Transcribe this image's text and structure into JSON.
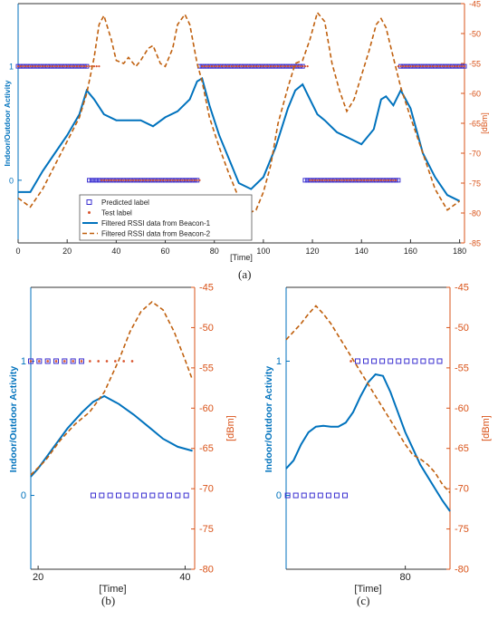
{
  "colors": {
    "left_axis": "#0072BD",
    "right_axis": "#D95319",
    "predicted": "#3a2fd0",
    "test": "#d9532c",
    "beacon1": "#0072BD",
    "beacon2": "#C0600E"
  },
  "captions": [
    "(a)",
    "(b)",
    "(c)"
  ],
  "chart_data": [
    {
      "panel": "a",
      "type": "line",
      "xlabel": "[Time]",
      "ylabel": "Indoor/Outdoor Activity",
      "ylabel_right": "[dBm]",
      "xlim": [
        0,
        182
      ],
      "ylim_left": [
        -0.55,
        1.55
      ],
      "ylim_right": [
        -85,
        -45
      ],
      "xticks": [
        "0",
        "20",
        "40",
        "60",
        "80",
        "100",
        "120",
        "140",
        "160",
        "180"
      ],
      "yticks_left": [
        "0",
        "1"
      ],
      "yticks_right": [
        "-45",
        "-50",
        "-55",
        "-60",
        "-65",
        "-70",
        "-75",
        "-80",
        "-85"
      ],
      "legend": [
        "Predicted label",
        "Test label",
        "Filtered RSSI data from Beacon-1",
        "Filtered RSSI data from Beacon-2"
      ],
      "legend_position": "bottom-left",
      "series": [
        {
          "name": "Predicted label",
          "kind": "markers",
          "marker": "square",
          "segments": [
            {
              "x": [
                0,
                27
              ],
              "y": 1
            },
            {
              "x": 28,
              "y": 1
            },
            {
              "x": [
                29,
                73
              ],
              "y": 0
            },
            {
              "x": [
                74,
                116
              ],
              "y": 1
            },
            {
              "x": [
                117,
                155
              ],
              "y": 0
            },
            {
              "x": [
                156,
                182
              ],
              "y": 1
            }
          ]
        },
        {
          "name": "Test label",
          "kind": "markers",
          "marker": "dot",
          "segments": [
            {
              "x": [
                0,
                33
              ],
              "y": 1
            },
            {
              "x": [
                34,
                74
              ],
              "y": 0
            },
            {
              "x": [
                75,
                118
              ],
              "y": 1
            },
            {
              "x": [
                119,
                154
              ],
              "y": 0
            },
            {
              "x": [
                155,
                182
              ],
              "y": 1
            }
          ]
        },
        {
          "name": "Filtered RSSI data from Beacon-1",
          "axis": "right",
          "x": [
            0,
            5,
            10,
            15,
            20,
            25,
            28,
            31,
            35,
            40,
            45,
            50,
            55,
            60,
            65,
            70,
            73,
            75,
            78,
            82,
            86,
            90,
            95,
            100,
            105,
            110,
            113,
            116,
            119,
            122,
            125,
            130,
            135,
            140,
            145,
            148,
            150,
            153,
            156,
            160,
            165,
            170,
            175,
            180
          ],
          "y": [
            -76.5,
            -76.5,
            -73,
            -70,
            -67,
            -63.5,
            -59.5,
            -61,
            -63.5,
            -64.5,
            -64.5,
            -64.5,
            -65.5,
            -64,
            -63,
            -61,
            -58,
            -57.5,
            -62,
            -67,
            -71,
            -75,
            -76,
            -74,
            -69,
            -62.5,
            -59.5,
            -58.5,
            -61,
            -63.5,
            -64.5,
            -66.5,
            -67.5,
            -68.5,
            -66,
            -61,
            -60.5,
            -62,
            -59.5,
            -62.5,
            -70,
            -74,
            -77,
            -78
          ]
        },
        {
          "name": "Filtered RSSI data from Beacon-2",
          "axis": "right",
          "x": [
            0,
            5,
            10,
            15,
            20,
            25,
            28,
            31,
            33,
            35,
            38,
            40,
            43,
            45,
            48,
            50,
            53,
            55,
            58,
            60,
            63,
            65,
            68,
            70,
            73,
            75,
            78,
            82,
            86,
            90,
            94,
            97,
            100,
            103,
            106,
            110,
            113,
            116,
            119,
            122,
            125,
            128,
            131,
            134,
            137,
            140,
            143,
            146,
            148,
            150,
            153,
            156,
            160,
            165,
            170,
            175,
            180
          ],
          "y": [
            -77.5,
            -79,
            -76,
            -72,
            -68,
            -64,
            -60,
            -54,
            -48.5,
            -47,
            -51,
            -54.5,
            -55,
            -54,
            -55.5,
            -54.5,
            -52.5,
            -52,
            -55,
            -55.5,
            -52.5,
            -48.5,
            -46.8,
            -48.5,
            -55,
            -58,
            -64,
            -69,
            -73.5,
            -77.5,
            -80,
            -79.5,
            -76.5,
            -72,
            -65,
            -59,
            -55,
            -54.5,
            -51,
            -46.5,
            -48,
            -55,
            -59.5,
            -63,
            -61,
            -57,
            -53,
            -48.5,
            -47.5,
            -49,
            -54,
            -59,
            -64,
            -70,
            -76,
            -79.5,
            -78
          ]
        }
      ]
    },
    {
      "panel": "b",
      "type": "line",
      "xlabel": "[Time]",
      "ylabel": "Indoor/Outdoor Activity",
      "ylabel_right": "[dBm]",
      "xlim": [
        19,
        41.3
      ],
      "ylim_left": [
        -0.55,
        1.55
      ],
      "ylim_right": [
        -80,
        -45
      ],
      "xticks": [
        "20",
        "40"
      ],
      "yticks_left": [
        "0",
        "1"
      ],
      "yticks_right": [
        "-45",
        "-50",
        "-55",
        "-60",
        "-65",
        "-70",
        "-75",
        "-80"
      ],
      "series": [
        {
          "name": "Predicted label",
          "kind": "markers",
          "marker": "square",
          "segments": [
            {
              "x": [
                19,
                26.5
              ],
              "y": 1
            },
            {
              "x": [
                27.5,
                40.3
              ],
              "y": 0
            }
          ]
        },
        {
          "name": "Test label",
          "kind": "markers",
          "marker": "dot",
          "segments": [
            {
              "x": [
                19,
                33.2
              ],
              "y": 1
            }
          ]
        },
        {
          "name": "Filtered RSSI data from Beacon-1",
          "axis": "right",
          "x": [
            19,
            20,
            22,
            24,
            26,
            27.5,
            29,
            31,
            33,
            35,
            37,
            39,
            41
          ],
          "y": [
            -68.5,
            -67.5,
            -65,
            -62.5,
            -60.5,
            -59.2,
            -58.5,
            -59.5,
            -60.8,
            -62.3,
            -63.8,
            -64.8,
            -65.3
          ]
        },
        {
          "name": "Filtered RSSI data from Beacon-2",
          "axis": "right",
          "x": [
            19,
            21,
            23,
            25,
            27,
            29,
            31,
            32.5,
            34,
            35.5,
            37,
            38.5,
            40,
            41
          ],
          "y": [
            -68.3,
            -66.5,
            -64,
            -62,
            -60.5,
            -58,
            -54,
            -50.5,
            -48,
            -46.8,
            -47.8,
            -50.5,
            -54,
            -56.5
          ]
        }
      ]
    },
    {
      "panel": "c",
      "type": "line",
      "xlabel": "[Time]",
      "ylabel": "Indoor/Outdoor Activity",
      "ylabel_right": "[dBm]",
      "xlim": [
        64,
        86
      ],
      "ylim_left": [
        -0.55,
        1.55
      ],
      "ylim_right": [
        -80,
        -45
      ],
      "xticks": [
        "80"
      ],
      "yticks_left": [
        "0",
        "1"
      ],
      "yticks_right": [
        "-45",
        "-50",
        "-55",
        "-60",
        "-65",
        "-70",
        "-75",
        "-80"
      ],
      "series": [
        {
          "name": "Predicted label",
          "kind": "markers",
          "marker": "square",
          "segments": [
            {
              "x": [
                64.2,
                72.7
              ],
              "y": 0
            },
            {
              "x": [
                73.6,
                85.6
              ],
              "y": 1
            }
          ]
        },
        {
          "name": "Test label",
          "kind": "markers",
          "marker": "dot",
          "segments": [
            {
              "x": [
                72.7,
                73.2
              ],
              "y": 1
            }
          ]
        },
        {
          "name": "Filtered RSSI data from Beacon-1",
          "axis": "right",
          "x": [
            64,
            65,
            66,
            67,
            68,
            69,
            70,
            71,
            72,
            73,
            74,
            75,
            76,
            77,
            78,
            79,
            80,
            81,
            82,
            83,
            84,
            85,
            86
          ],
          "y": [
            -67.5,
            -66.5,
            -64.5,
            -63,
            -62.3,
            -62.2,
            -62.3,
            -62.3,
            -61.8,
            -60.5,
            -58.5,
            -56.8,
            -55.8,
            -56,
            -58,
            -60.5,
            -63,
            -65,
            -67,
            -68.5,
            -70,
            -71.5,
            -72.8
          ]
        },
        {
          "name": "Filtered RSSI data from Beacon-2",
          "axis": "right",
          "x": [
            64,
            65,
            66,
            67,
            68,
            69,
            70,
            71,
            72,
            73,
            74,
            75,
            76,
            77,
            78,
            79,
            80,
            81,
            82,
            83,
            84,
            85,
            86
          ],
          "y": [
            -51.5,
            -50.5,
            -49.5,
            -48.3,
            -47.3,
            -48.3,
            -49.5,
            -51,
            -52.5,
            -54,
            -55.5,
            -57,
            -58.5,
            -60,
            -61.5,
            -63,
            -64.5,
            -65.8,
            -66.3,
            -67,
            -68,
            -69.5,
            -70.5
          ]
        }
      ]
    }
  ]
}
